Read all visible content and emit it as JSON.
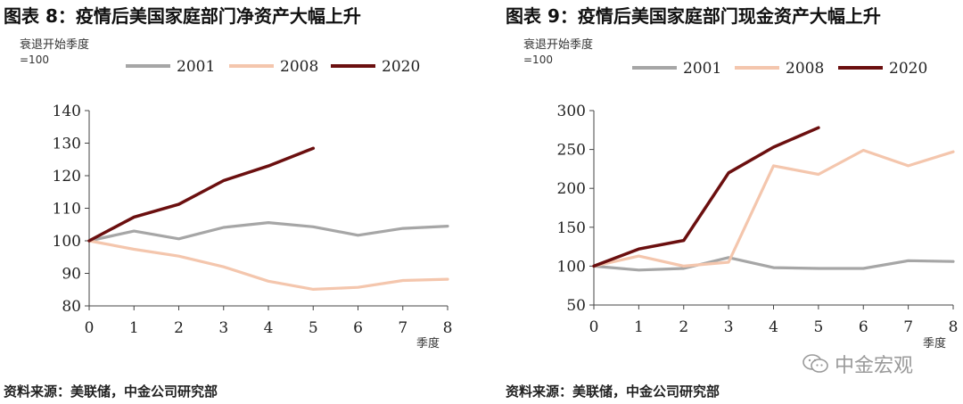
{
  "chart_data": [
    {
      "type": "line",
      "title": "图表 8：疫情后美国家庭部门净资产大幅上升",
      "ylabel": "衰退开始季度 =100",
      "xlabel": "季度",
      "ylim": [
        80,
        140
      ],
      "yticks": [
        80,
        90,
        100,
        110,
        120,
        130,
        140
      ],
      "xlim": [
        0,
        8
      ],
      "xticks": [
        0,
        1,
        2,
        3,
        4,
        5,
        6,
        7,
        8
      ],
      "legend_placement": "top",
      "grid": false,
      "source": "资料来源：美联储，中金公司研究部",
      "series": [
        {
          "name": "2001",
          "color": "#a6a6a6",
          "x": [
            0,
            1,
            2,
            3,
            4,
            5,
            6,
            7,
            8
          ],
          "values": [
            100,
            103,
            100.6,
            104.1,
            105.6,
            104.3,
            101.7,
            103.8,
            104.5
          ]
        },
        {
          "name": "2008",
          "color": "#f4c6ad",
          "x": [
            0,
            1,
            2,
            3,
            4,
            5,
            6,
            7,
            8
          ],
          "values": [
            100,
            97.4,
            95.3,
            92,
            87.6,
            85.1,
            85.7,
            87.8,
            88.2
          ]
        },
        {
          "name": "2020",
          "color": "#6b0f0f",
          "x": [
            0,
            1,
            2,
            3,
            4,
            5
          ],
          "values": [
            100,
            107.3,
            111.2,
            118.5,
            123,
            128.4
          ]
        }
      ]
    },
    {
      "type": "line",
      "title": "图表 9：疫情后美国家庭部门现金资产大幅上升",
      "ylabel": "衰退开始季度 =100",
      "xlabel": "季度",
      "ylim": [
        50,
        300
      ],
      "yticks": [
        50,
        100,
        150,
        200,
        250,
        300
      ],
      "xlim": [
        0,
        8
      ],
      "xticks": [
        0,
        1,
        2,
        3,
        4,
        5,
        6,
        7,
        8
      ],
      "legend_placement": "top",
      "grid": false,
      "source": "资料来源：美联储，中金公司研究部",
      "series": [
        {
          "name": "2001",
          "color": "#a6a6a6",
          "x": [
            0,
            1,
            2,
            3,
            4,
            5,
            6,
            7,
            8
          ],
          "values": [
            100,
            95,
            97,
            111,
            98,
            97,
            97,
            107,
            106
          ]
        },
        {
          "name": "2008",
          "color": "#f4c6ad",
          "x": [
            0,
            1,
            2,
            3,
            4,
            5,
            6,
            7,
            8
          ],
          "values": [
            100,
            113,
            100,
            105,
            229,
            218,
            249,
            229,
            247
          ]
        },
        {
          "name": "2020",
          "color": "#6b0f0f",
          "x": [
            0,
            1,
            2,
            3,
            4,
            5
          ],
          "values": [
            100,
            122,
            133,
            220,
            253,
            278
          ]
        }
      ]
    }
  ],
  "watermark": {
    "text": "中金宏观",
    "icon": "wechat-icon"
  }
}
